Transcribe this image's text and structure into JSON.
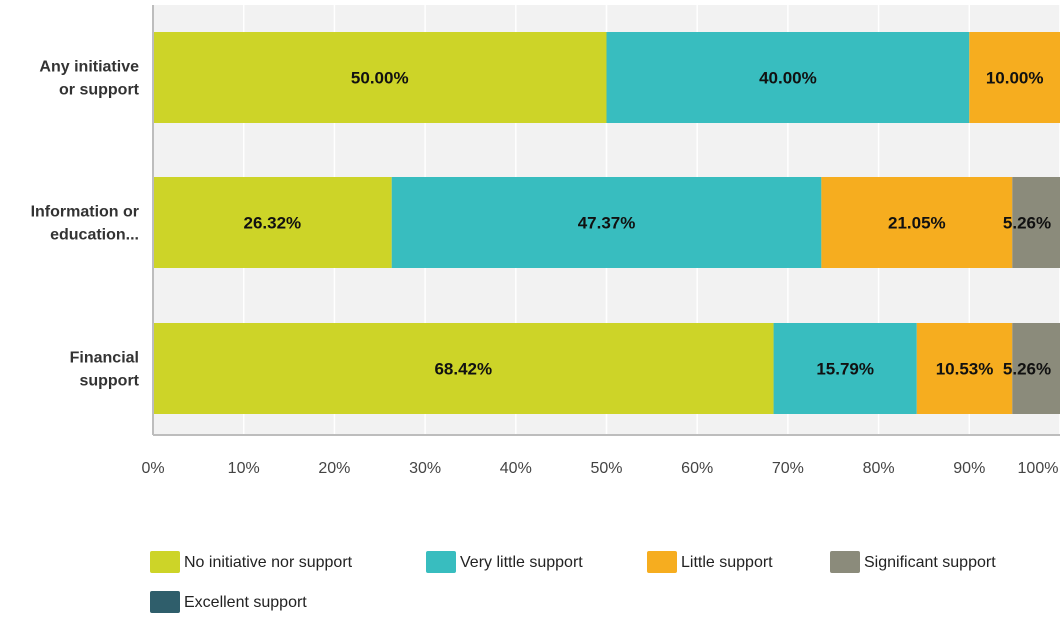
{
  "chart_data": {
    "type": "bar",
    "orientation": "horizontal",
    "stacked": true,
    "categories": [
      [
        "Any initiative",
        "or support"
      ],
      [
        "Information or",
        "education..."
      ],
      [
        "Financial",
        "support"
      ]
    ],
    "series": [
      {
        "name": "No initiative nor support",
        "color": "#cdd428",
        "values": [
          50.0,
          26.32,
          68.42
        ]
      },
      {
        "name": "Very little support",
        "color": "#38bdbf",
        "values": [
          40.0,
          47.37,
          15.79
        ]
      },
      {
        "name": "Little support",
        "color": "#f6ad1f",
        "values": [
          10.0,
          21.05,
          10.53
        ]
      },
      {
        "name": "Significant support",
        "color": "#8b8b7b",
        "values": [
          0,
          5.26,
          5.26
        ]
      },
      {
        "name": "Excellent support",
        "color": "#2f5e6b",
        "values": [
          0,
          0,
          0
        ]
      }
    ],
    "xlim": [
      0,
      100
    ],
    "xticks": [
      "0%",
      "10%",
      "20%",
      "30%",
      "40%",
      "50%",
      "60%",
      "70%",
      "80%",
      "90%",
      "100%"
    ],
    "grid": true,
    "legend_position": "bottom",
    "value_format": "percent, two decimals"
  }
}
